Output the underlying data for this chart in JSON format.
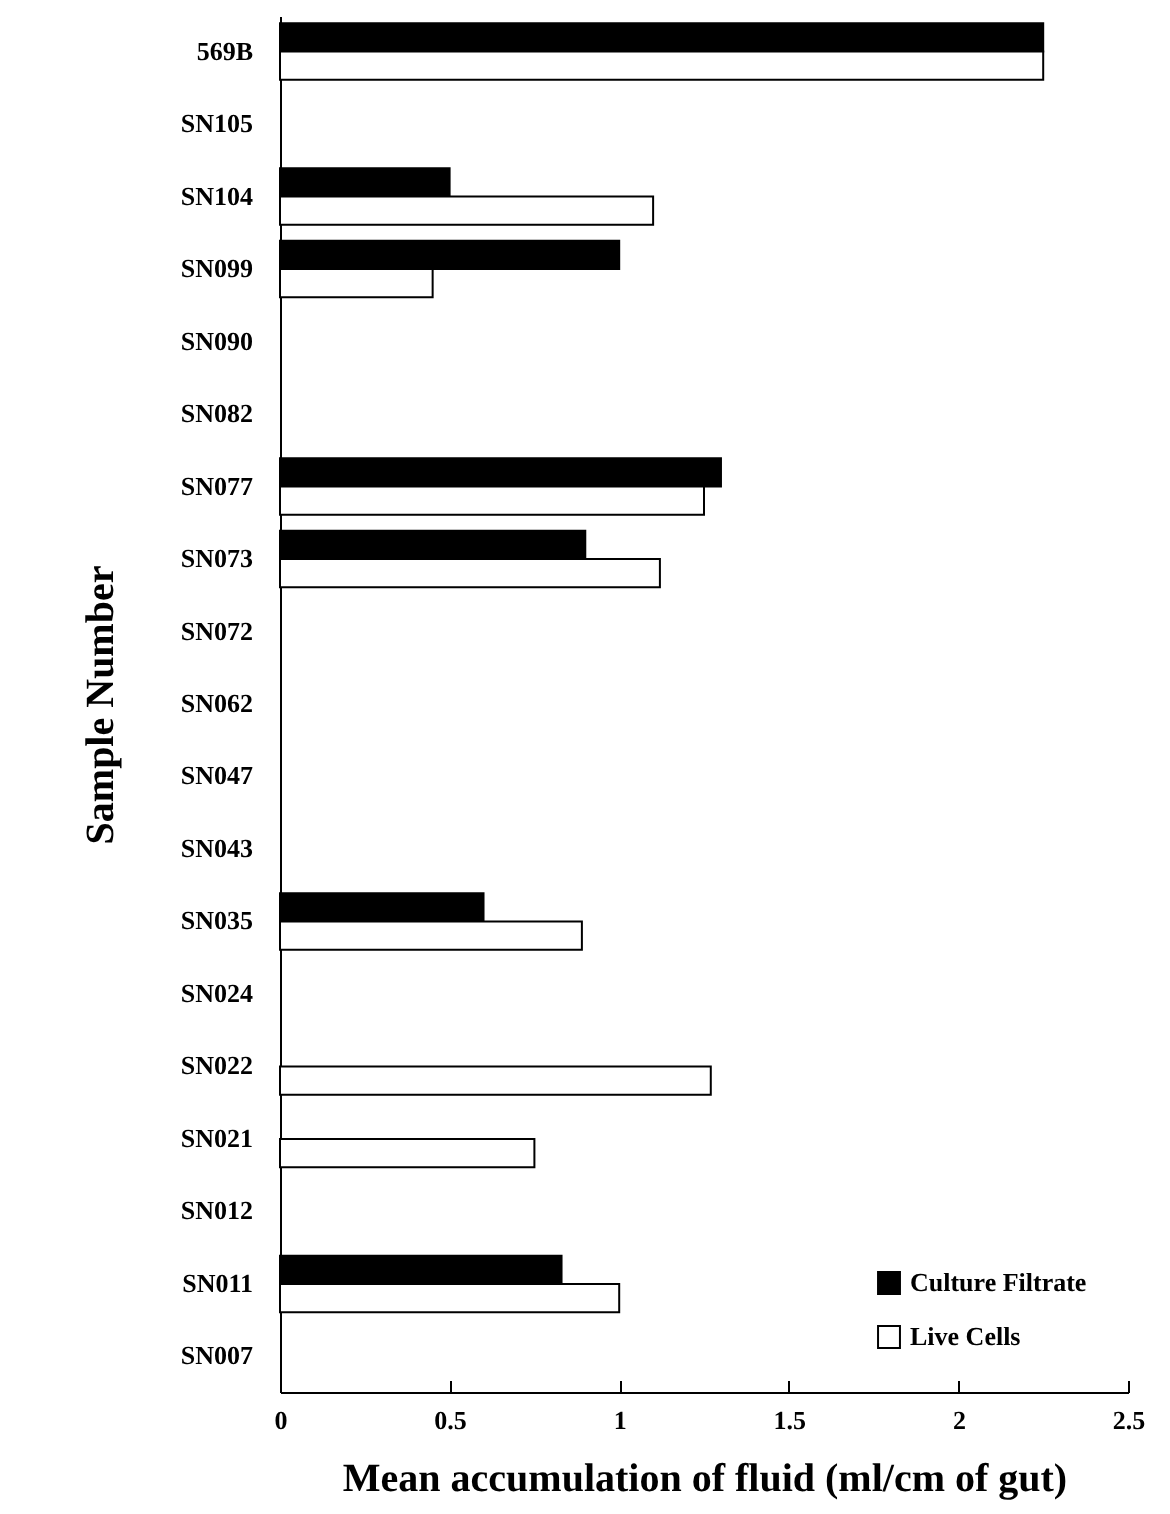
{
  "chart_data": {
    "type": "bar",
    "orientation": "horizontal",
    "xlabel": "Mean accumulation of fluid (ml/cm of gut)",
    "ylabel": "Sample Number",
    "categories": [
      "569B",
      "SN105",
      "SN104",
      "SN099",
      "SN090",
      "SN082",
      "SN077",
      "SN073",
      "SN072",
      "SN062",
      "SN047",
      "SN043",
      "SN035",
      "SN024",
      "SN022",
      "SN021",
      "SN012",
      "SN011",
      "SN007"
    ],
    "series": [
      {
        "name": "Culture Filtrate",
        "color": "#000000",
        "values": [
          2.25,
          null,
          0.5,
          1.0,
          null,
          null,
          1.3,
          0.9,
          null,
          null,
          null,
          null,
          0.6,
          null,
          null,
          null,
          null,
          0.83,
          null
        ]
      },
      {
        "name": "Live Cells",
        "color": "#ffffff",
        "values": [
          2.25,
          null,
          1.1,
          0.45,
          null,
          null,
          1.25,
          1.12,
          null,
          null,
          null,
          null,
          0.89,
          null,
          1.27,
          0.75,
          null,
          1.0,
          null
        ]
      }
    ],
    "xlim": [
      0,
      2.5
    ],
    "xticks": [
      0,
      0.5,
      1,
      1.5,
      2,
      2.5
    ],
    "grid": false,
    "legend": "bottom right"
  }
}
